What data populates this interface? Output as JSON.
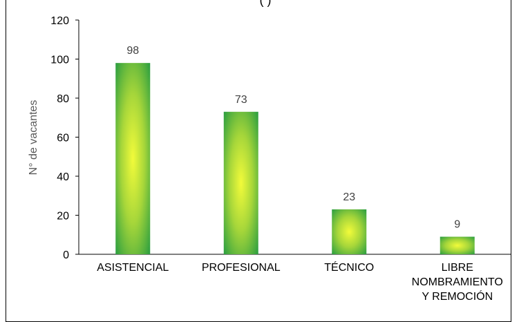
{
  "chart_data": {
    "type": "bar",
    "title_fragment": "(                                      )",
    "categories": [
      [
        "ASISTENCIAL"
      ],
      [
        "PROFESIONAL"
      ],
      [
        "TÉCNICO"
      ],
      [
        "LIBRE",
        "NOMBRAMIENTO",
        "Y REMOCIÓN"
      ]
    ],
    "values": [
      98,
      73,
      23,
      9
    ],
    "data_labels": [
      "98",
      "73",
      "23",
      "9"
    ],
    "ylabel": "N° de vacantes",
    "xlabel": "",
    "ylim": [
      0,
      120
    ],
    "yticks": [
      0,
      20,
      40,
      60,
      80,
      100,
      120
    ],
    "grid": false,
    "colors": {
      "bar_edge": "#1a9641",
      "bar_center": "#f2fb3a",
      "bar_mid": "#a6d63a",
      "axis": "#000000"
    }
  }
}
